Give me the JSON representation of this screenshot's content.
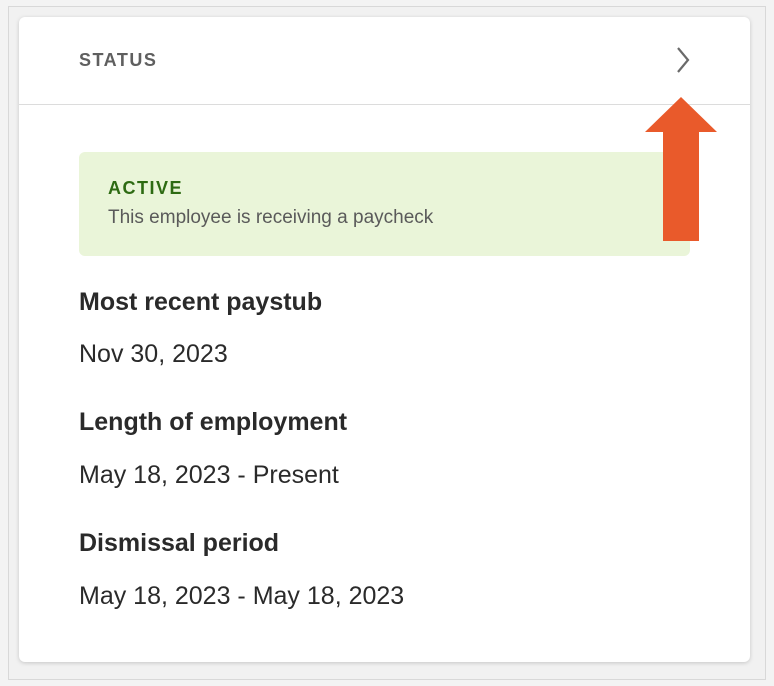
{
  "header": {
    "title": "STATUS",
    "chevron_icon": "chevron-right-icon"
  },
  "status": {
    "label": "ACTIVE",
    "description": "This employee is receiving a paycheck",
    "color": "#2e6b13",
    "background": "#eaf5d9"
  },
  "fields": [
    {
      "label": "Most recent paystub",
      "value": "Nov 30, 2023"
    },
    {
      "label": "Length of employment",
      "value": "May 18, 2023 - Present"
    },
    {
      "label": "Dismissal period",
      "value": "May 18, 2023 - May 18, 2023"
    }
  ],
  "annotation": {
    "icon": "arrow-up-icon",
    "color": "#e95a2b"
  }
}
